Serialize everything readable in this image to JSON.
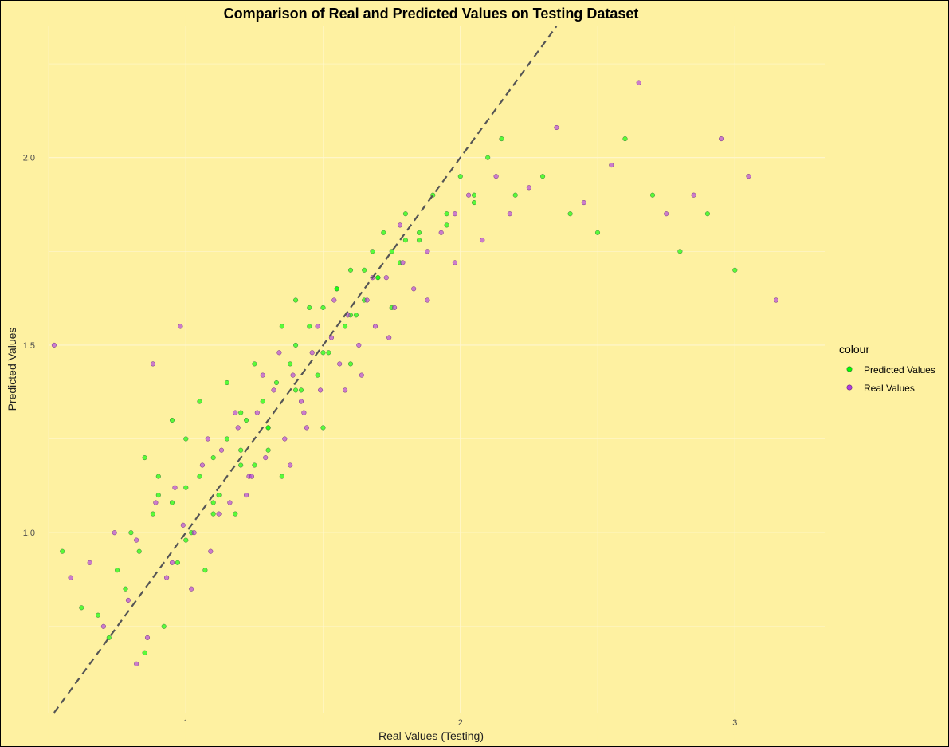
{
  "chart_data": {
    "type": "scatter",
    "title": "Comparison of Real and Predicted Values on Testing Dataset",
    "xlabel": "Real Values (Testing)",
    "ylabel": "Predicted Values",
    "xlim": [
      0.5,
      3.33
    ],
    "ylim": [
      0.52,
      2.35
    ],
    "x_ticks": [
      1,
      2,
      3
    ],
    "x_tick_labels": [
      "1",
      "2",
      "3"
    ],
    "y_ticks": [
      1.0,
      1.5,
      2.0
    ],
    "y_tick_labels": [
      "1.0",
      "1.5",
      "2.0"
    ],
    "grid": true,
    "reference_line": {
      "style": "dashed",
      "slope": 1,
      "intercept": 0,
      "color": "#555555"
    },
    "legend": {
      "title": "colour",
      "placement": "right",
      "entries": [
        {
          "label": "Predicted Values",
          "color": "#00ff00"
        },
        {
          "label": "Real Values",
          "color": "#b03de0"
        }
      ]
    },
    "series": [
      {
        "name": "Predicted Values",
        "color": "#00ff00",
        "x": [
          0.55,
          0.62,
          0.68,
          0.72,
          0.75,
          0.78,
          0.8,
          0.83,
          0.85,
          0.88,
          0.9,
          0.92,
          0.95,
          0.97,
          1.0,
          1.02,
          1.05,
          1.07,
          1.1,
          1.12,
          1.15,
          1.18,
          1.2,
          1.22,
          1.25,
          1.28,
          1.3,
          1.33,
          1.35,
          1.38,
          1.4,
          1.42,
          1.45,
          1.48,
          1.5,
          1.52,
          1.55,
          1.58,
          1.6,
          1.62,
          1.65,
          1.68,
          1.7,
          1.72,
          1.75,
          1.78,
          1.8,
          1.85,
          1.9,
          1.95,
          2.0,
          2.05,
          2.1,
          2.15,
          2.2,
          2.3,
          2.4,
          2.5,
          2.6,
          2.7,
          2.8,
          2.9,
          3.0,
          0.85,
          0.95,
          1.05,
          1.15,
          1.25,
          1.35,
          1.45,
          1.55,
          1.65,
          1.75,
          1.85,
          1.95,
          2.05,
          1.0,
          1.1,
          1.2,
          1.3,
          1.4,
          1.5,
          1.6,
          1.7,
          1.8,
          0.9,
          1.0,
          1.1,
          1.2,
          1.3,
          1.4,
          1.5,
          1.6
        ],
        "y": [
          0.95,
          0.8,
          0.78,
          0.72,
          0.9,
          0.85,
          1.0,
          0.95,
          0.68,
          1.05,
          1.1,
          0.75,
          1.08,
          0.92,
          1.12,
          1.0,
          1.15,
          0.9,
          1.2,
          1.1,
          1.25,
          1.05,
          1.22,
          1.3,
          1.18,
          1.35,
          1.28,
          1.4,
          1.15,
          1.45,
          1.5,
          1.38,
          1.55,
          1.42,
          1.6,
          1.48,
          1.65,
          1.55,
          1.7,
          1.58,
          1.62,
          1.75,
          1.68,
          1.8,
          1.6,
          1.72,
          1.85,
          1.78,
          1.9,
          1.82,
          1.95,
          1.88,
          2.0,
          2.05,
          1.9,
          1.95,
          1.85,
          1.8,
          2.05,
          1.9,
          1.75,
          1.85,
          1.7,
          1.2,
          1.3,
          1.35,
          1.4,
          1.45,
          1.55,
          1.6,
          1.65,
          1.7,
          1.75,
          1.8,
          1.85,
          1.9,
          0.98,
          1.08,
          1.18,
          1.28,
          1.38,
          1.48,
          1.58,
          1.68,
          1.78,
          1.15,
          1.25,
          1.05,
          1.32,
          1.22,
          1.62,
          1.28,
          1.45
        ]
      },
      {
        "name": "Real Values",
        "color": "#b03de0",
        "x": [
          0.52,
          0.58,
          0.65,
          0.7,
          0.74,
          0.79,
          0.82,
          0.86,
          0.89,
          0.93,
          0.96,
          0.99,
          1.03,
          1.06,
          1.09,
          1.13,
          1.16,
          1.19,
          1.23,
          1.26,
          1.29,
          1.32,
          1.36,
          1.39,
          1.43,
          1.46,
          1.49,
          1.53,
          1.56,
          1.59,
          1.63,
          1.66,
          1.69,
          1.73,
          1.76,
          1.79,
          1.83,
          1.88,
          1.93,
          1.98,
          2.03,
          2.08,
          2.13,
          2.18,
          2.25,
          2.35,
          2.45,
          2.55,
          2.65,
          2.75,
          2.85,
          2.95,
          3.05,
          3.15,
          0.88,
          0.98,
          1.08,
          1.18,
          1.28,
          1.38,
          1.48,
          1.58,
          1.68,
          1.78,
          1.88,
          1.98,
          0.95,
          1.12,
          1.24,
          1.34,
          1.44,
          1.54,
          1.64,
          1.74,
          0.82,
          1.02,
          1.22,
          1.42
        ],
        "y": [
          1.5,
          0.88,
          0.92,
          0.75,
          1.0,
          0.82,
          0.98,
          0.72,
          1.08,
          0.88,
          1.12,
          1.02,
          1.0,
          1.18,
          0.95,
          1.22,
          1.08,
          1.28,
          1.15,
          1.32,
          1.2,
          1.38,
          1.25,
          1.42,
          1.32,
          1.48,
          1.38,
          1.52,
          1.45,
          1.58,
          1.5,
          1.62,
          1.55,
          1.68,
          1.6,
          1.72,
          1.65,
          1.75,
          1.8,
          1.85,
          1.9,
          1.78,
          1.95,
          1.85,
          1.92,
          2.08,
          1.88,
          1.98,
          2.2,
          1.85,
          1.9,
          2.05,
          1.95,
          1.62,
          1.45,
          1.55,
          1.25,
          1.32,
          1.42,
          1.18,
          1.55,
          1.38,
          1.68,
          1.82,
          1.62,
          1.72,
          0.92,
          1.05,
          1.15,
          1.48,
          1.28,
          1.62,
          1.42,
          1.52,
          0.65,
          0.85,
          1.1,
          1.35
        ]
      }
    ]
  }
}
